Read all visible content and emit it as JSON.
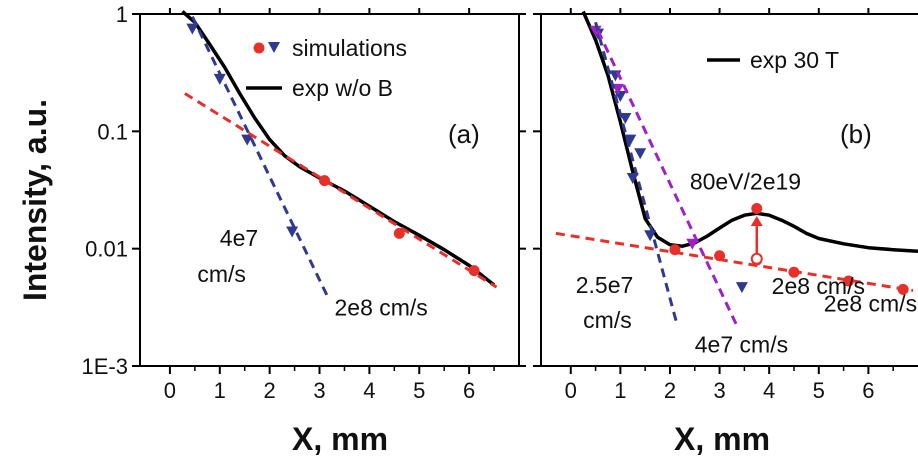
{
  "ylabel": "Intensity, a.u.",
  "colors": {
    "blue": "#2f3a8f",
    "red": "#e8302a",
    "purple": "#a020c8",
    "black": "#000000",
    "label_blue": "#2e4a9a"
  },
  "chart_data": [
    {
      "panel": "a",
      "type": "line",
      "panel_label": "(a)",
      "xlabel": "X, mm",
      "ylabel": "Intensity, a.u.",
      "xlim": [
        -0.6,
        7.0
      ],
      "ylim": [
        0.001,
        1
      ],
      "yscale": "log",
      "xticks": [
        0,
        1,
        2,
        3,
        4,
        5,
        6
      ],
      "yticks": [
        0.001,
        0.01,
        0.1,
        1
      ],
      "ytick_labels": [
        "1E-3",
        "0.01",
        "0.1",
        "1"
      ],
      "legend": {
        "placement": "top-right",
        "entries": [
          {
            "label": "simulations",
            "marker": "circle+triangle"
          },
          {
            "label": "exp w/o B",
            "marker": "black line"
          }
        ]
      },
      "series": [
        {
          "kind": "exp-line",
          "color_key": "black",
          "x": [
            0.25,
            0.5,
            0.8,
            1.1,
            1.4,
            1.7,
            2.0,
            2.3,
            2.6,
            3.0,
            3.5,
            4.0,
            4.5,
            5.0,
            5.5,
            6.0,
            6.5
          ],
          "y": [
            1.05,
            0.85,
            0.55,
            0.35,
            0.21,
            0.13,
            0.085,
            0.062,
            0.05,
            0.04,
            0.031,
            0.023,
            0.017,
            0.013,
            0.0098,
            0.0072,
            0.0049
          ]
        },
        {
          "kind": "sim-markers",
          "marker": "triangle",
          "color_key": "blue",
          "x": [
            0.45,
            1.0,
            1.55,
            2.45
          ],
          "y": [
            0.75,
            0.28,
            0.085,
            0.014
          ]
        },
        {
          "kind": "sim-markers",
          "marker": "circle",
          "color_key": "red",
          "x": [
            3.1,
            4.6,
            6.1
          ],
          "y": [
            0.038,
            0.0135,
            0.0065
          ]
        },
        {
          "kind": "fit-line",
          "color_key": "blue",
          "x": [
            0.45,
            3.15
          ],
          "y": [
            0.95,
            0.004
          ]
        },
        {
          "kind": "fit-line",
          "color_key": "red",
          "x": [
            0.3,
            6.55
          ],
          "y": [
            0.21,
            0.0047
          ]
        }
      ],
      "annotations": [
        {
          "text": "4e7",
          "x": 1.0,
          "y": 0.0105
        },
        {
          "text": "cm/s",
          "x": 0.55,
          "y": 0.0052
        },
        {
          "text": "2e8 cm/s",
          "x": 3.3,
          "y": 0.0027
        }
      ]
    },
    {
      "panel": "b",
      "type": "line",
      "panel_label": "(b)",
      "xlabel": "X, mm",
      "xlim": [
        -0.6,
        7.0
      ],
      "ylim": [
        0.001,
        1
      ],
      "yscale": "log",
      "xticks": [
        0,
        1,
        2,
        3,
        4,
        5,
        6
      ],
      "legend": {
        "placement": "top-right",
        "entries": [
          {
            "label": "exp 30 T",
            "marker": "black line"
          }
        ]
      },
      "series": [
        {
          "kind": "exp-line",
          "color_key": "black",
          "x": [
            0.25,
            0.5,
            0.75,
            1.0,
            1.25,
            1.5,
            1.75,
            2.0,
            2.25,
            2.5,
            2.75,
            3.0,
            3.25,
            3.5,
            3.75,
            4.0,
            4.25,
            4.5,
            4.75,
            5.0,
            5.5,
            6.0,
            6.5,
            7.0
          ],
          "y": [
            1.05,
            0.6,
            0.3,
            0.12,
            0.045,
            0.018,
            0.0125,
            0.0108,
            0.0105,
            0.0112,
            0.0128,
            0.015,
            0.0175,
            0.0193,
            0.02,
            0.0193,
            0.0175,
            0.0155,
            0.0135,
            0.0122,
            0.011,
            0.0102,
            0.0098,
            0.0095
          ]
        },
        {
          "kind": "sim-markers",
          "marker": "triangle",
          "color_key": "blue",
          "x": [
            0.55,
            0.9,
            1.0,
            1.1,
            1.2,
            1.25,
            1.4,
            1.6,
            3.45
          ],
          "y": [
            0.68,
            0.3,
            0.2,
            0.13,
            0.085,
            0.04,
            0.065,
            0.013,
            0.0047
          ]
        },
        {
          "kind": "sim-markers",
          "marker": "triangle",
          "color_key": "purple",
          "x": [
            0.5,
            0.95,
            2.45
          ],
          "y": [
            0.72,
            0.23,
            0.011
          ]
        },
        {
          "kind": "sim-markers",
          "marker": "circle",
          "color_key": "red",
          "x": [
            2.1,
            3.0,
            3.75,
            4.5,
            5.6,
            6.7
          ],
          "y": [
            0.0098,
            0.0087,
            0.008,
            0.0063,
            0.0053,
            0.0045
          ]
        },
        {
          "kind": "sim-markers",
          "marker": "circle",
          "color_key": "red",
          "x": [
            3.75
          ],
          "y": [
            0.022
          ]
        },
        {
          "kind": "fit-line",
          "color_key": "blue",
          "x": [
            0.5,
            2.15
          ],
          "y": [
            0.85,
            0.0022
          ]
        },
        {
          "kind": "fit-line",
          "color_key": "purple",
          "x": [
            0.55,
            3.35
          ],
          "y": [
            0.72,
            0.0022
          ]
        },
        {
          "kind": "fit-line",
          "color_key": "red",
          "x": [
            -0.3,
            6.9
          ],
          "y": [
            0.0135,
            0.0044
          ]
        }
      ],
      "arrow": {
        "x": 3.75,
        "y_from": 0.0082,
        "y_to": 0.019,
        "color_key": "red"
      },
      "annotations": [
        {
          "text": "80eV/2e19",
          "x": 2.4,
          "y": 0.032,
          "color_key": "label_blue"
        },
        {
          "text": "2.5e7",
          "x": 0.1,
          "y": 0.0042
        },
        {
          "text": "cm/s",
          "x": 0.25,
          "y": 0.0021
        },
        {
          "text": "4e7 cm/s",
          "x": 2.5,
          "y": 0.0013
        },
        {
          "text": "2e8 cm/s",
          "x": 4.05,
          "y": 0.0041
        },
        {
          "text": "2e8 cm/s",
          "x": 5.1,
          "y": 0.0029
        }
      ]
    }
  ]
}
